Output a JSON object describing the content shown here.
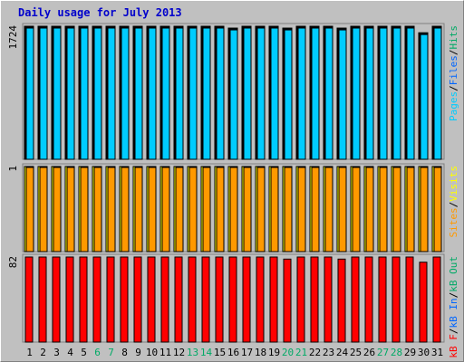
{
  "title": "Daily usage for July 2013",
  "colors": {
    "pages": "#00ccff",
    "files": "#0066ff",
    "hits": "#00aa66",
    "visits": "#ffff00",
    "sites": "#ff9900",
    "kb_out": "#00aa66",
    "kb_in": "#0066ff",
    "kb_f": "#ff0000",
    "title": "#0000cc",
    "panel_bg": "#c0c0c0",
    "outline": "#000000",
    "day_normal": "#000000",
    "day_weekend": "#00aa66"
  },
  "chart_data": [
    {
      "type": "bar",
      "panel": "top",
      "ymax_label": "1724",
      "legend_text": [
        {
          "text": "Pages",
          "color_key": "pages"
        },
        {
          "text": "/",
          "color_key": "outline"
        },
        {
          "text": "Files",
          "color_key": "files"
        },
        {
          "text": "/",
          "color_key": "outline"
        },
        {
          "text": "Hits",
          "color_key": "hits"
        }
      ],
      "ylim": [
        0,
        1724
      ],
      "categories": [
        "1",
        "2",
        "3",
        "4",
        "5",
        "6",
        "7",
        "8",
        "9",
        "10",
        "11",
        "12",
        "13",
        "14",
        "15",
        "16",
        "17",
        "18",
        "19",
        "20",
        "21",
        "22",
        "23",
        "24",
        "25",
        "26",
        "27",
        "28",
        "29",
        "30",
        "31"
      ],
      "series": [
        {
          "name": "Hits",
          "values": [
            1724,
            1724,
            1724,
            1724,
            1724,
            1724,
            1724,
            1724,
            1724,
            1724,
            1724,
            1724,
            1724,
            1724,
            1724,
            1700,
            1724,
            1724,
            1724,
            1700,
            1724,
            1724,
            1724,
            1700,
            1724,
            1724,
            1724,
            1724,
            1724,
            1640,
            1724
          ]
        },
        {
          "name": "Files",
          "values": [
            1724,
            1724,
            1724,
            1724,
            1724,
            1724,
            1724,
            1724,
            1724,
            1724,
            1724,
            1724,
            1724,
            1724,
            1724,
            1700,
            1724,
            1724,
            1724,
            1700,
            1724,
            1724,
            1724,
            1700,
            1724,
            1724,
            1724,
            1724,
            1724,
            1640,
            1724
          ]
        },
        {
          "name": "Pages",
          "values": [
            1724,
            1724,
            1724,
            1724,
            1724,
            1724,
            1724,
            1724,
            1724,
            1724,
            1724,
            1724,
            1724,
            1724,
            1724,
            1700,
            1724,
            1724,
            1724,
            1700,
            1724,
            1724,
            1724,
            1700,
            1724,
            1724,
            1724,
            1724,
            1724,
            1640,
            1724
          ]
        }
      ]
    },
    {
      "type": "bar",
      "panel": "middle",
      "ymax_label": "1",
      "legend_text": [
        {
          "text": "Sites",
          "color_key": "sites"
        },
        {
          "text": "/",
          "color_key": "outline"
        },
        {
          "text": "Visits",
          "color_key": "visits"
        }
      ],
      "ylim": [
        0,
        1
      ],
      "categories": [
        "1",
        "2",
        "3",
        "4",
        "5",
        "6",
        "7",
        "8",
        "9",
        "10",
        "11",
        "12",
        "13",
        "14",
        "15",
        "16",
        "17",
        "18",
        "19",
        "20",
        "21",
        "22",
        "23",
        "24",
        "25",
        "26",
        "27",
        "28",
        "29",
        "30",
        "31"
      ],
      "series": [
        {
          "name": "Visits",
          "values": [
            1,
            1,
            1,
            1,
            1,
            1,
            1,
            1,
            1,
            1,
            1,
            1,
            1,
            1,
            1,
            1,
            1,
            1,
            1,
            1,
            1,
            1,
            1,
            1,
            1,
            1,
            1,
            1,
            1,
            1,
            1
          ]
        },
        {
          "name": "Sites",
          "values": [
            1,
            1,
            1,
            1,
            1,
            1,
            1,
            1,
            1,
            1,
            1,
            1,
            1,
            1,
            1,
            1,
            1,
            1,
            1,
            1,
            1,
            1,
            1,
            1,
            1,
            1,
            1,
            1,
            1,
            1,
            1
          ]
        }
      ]
    },
    {
      "type": "bar",
      "panel": "bottom",
      "ymax_label": "82",
      "legend_text": [
        {
          "text": "kB F",
          "color_key": "kb_f"
        },
        {
          "text": "/",
          "color_key": "outline"
        },
        {
          "text": "kB In",
          "color_key": "kb_in"
        },
        {
          "text": "/",
          "color_key": "outline"
        },
        {
          "text": "kB Out",
          "color_key": "kb_out"
        }
      ],
      "ylim": [
        0,
        82
      ],
      "categories": [
        "1",
        "2",
        "3",
        "4",
        "5",
        "6",
        "7",
        "8",
        "9",
        "10",
        "11",
        "12",
        "13",
        "14",
        "15",
        "16",
        "17",
        "18",
        "19",
        "20",
        "21",
        "22",
        "23",
        "24",
        "25",
        "26",
        "27",
        "28",
        "29",
        "30",
        "31"
      ],
      "series": [
        {
          "name": "kB F",
          "values": [
            82,
            82,
            82,
            82,
            82,
            82,
            82,
            82,
            82,
            82,
            82,
            82,
            82,
            82,
            82,
            82,
            82,
            82,
            82,
            80,
            82,
            82,
            82,
            80,
            82,
            82,
            82,
            82,
            82,
            77,
            82
          ]
        }
      ]
    }
  ],
  "weekend_days": [
    "6",
    "7",
    "13",
    "14",
    "20",
    "21",
    "27",
    "28"
  ]
}
